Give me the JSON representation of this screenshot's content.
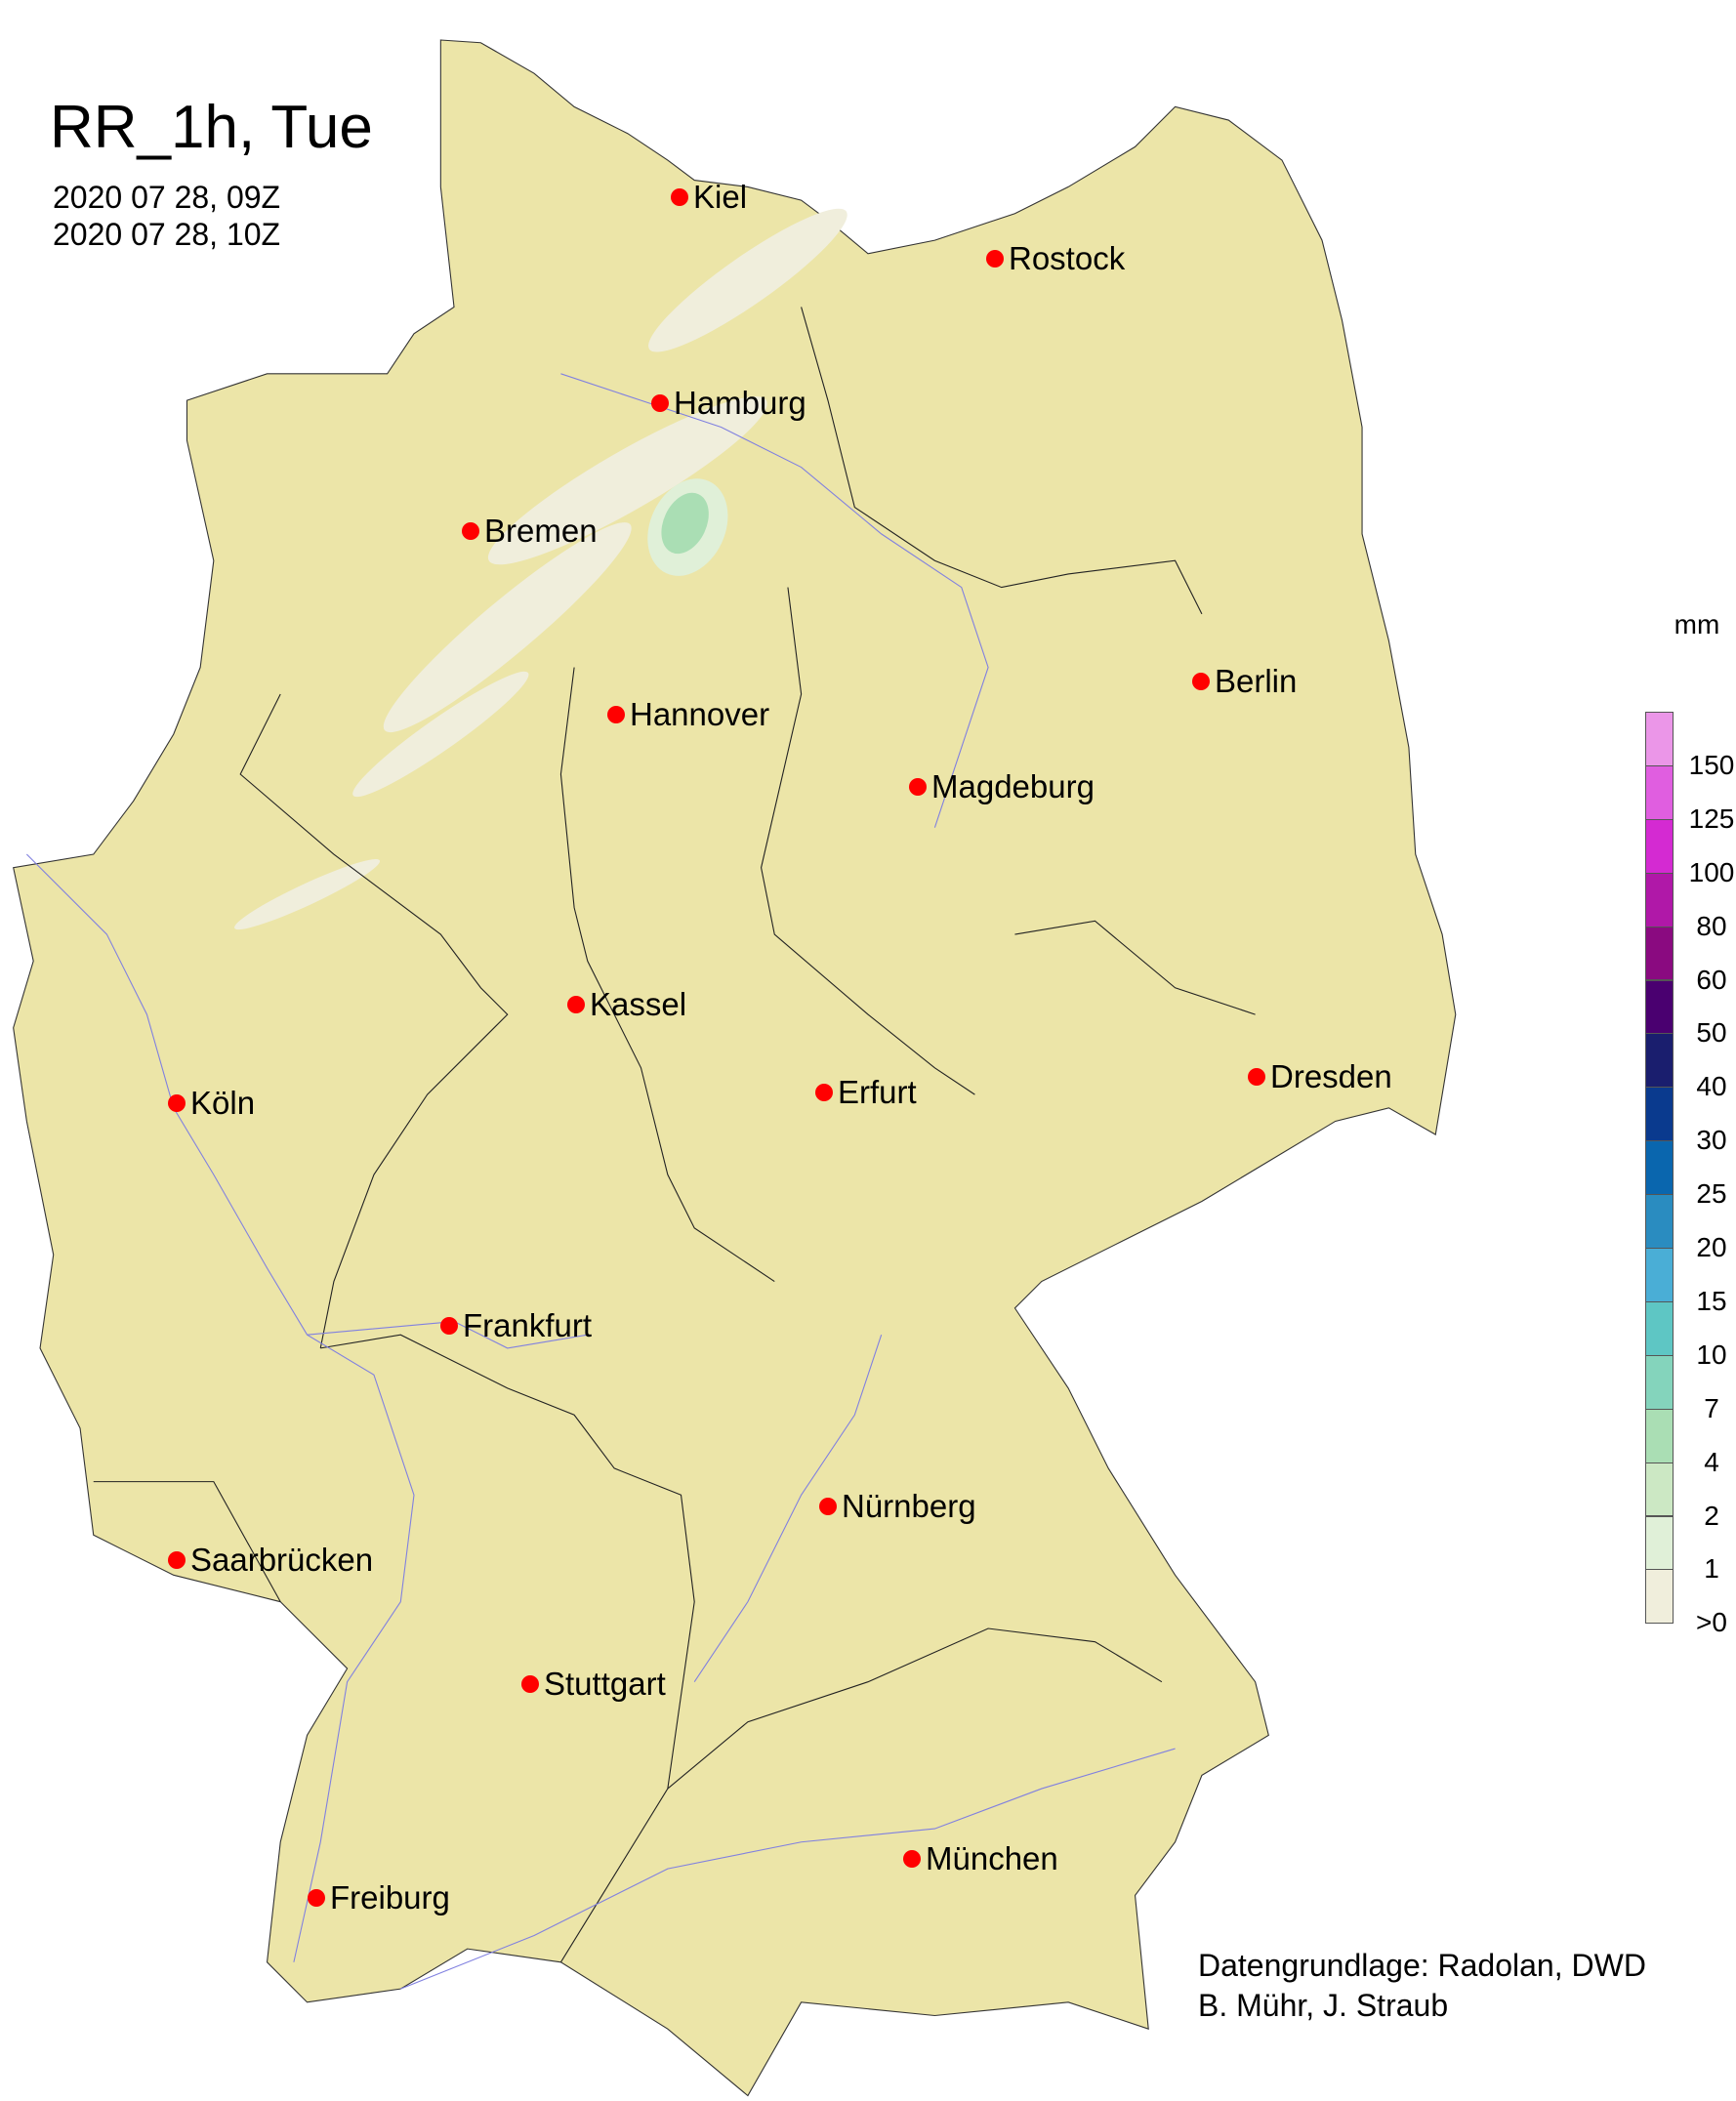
{
  "title": "RR_1h, Tue",
  "time_start": "2020 07 28, 09Z",
  "time_end": "2020 07 28, 10Z",
  "colors": {
    "land": "#ece5a8",
    "city_marker": "#ff0000",
    "border": "#222222",
    "river": "#8080e0"
  },
  "cities": [
    {
      "name": "Kiel"
    },
    {
      "name": "Rostock"
    },
    {
      "name": "Hamburg"
    },
    {
      "name": "Bremen"
    },
    {
      "name": "Berlin"
    },
    {
      "name": "Hannover"
    },
    {
      "name": "Magdeburg"
    },
    {
      "name": "Kassel"
    },
    {
      "name": "Köln"
    },
    {
      "name": "Erfurt"
    },
    {
      "name": "Dresden"
    },
    {
      "name": "Frankfurt"
    },
    {
      "name": "Nürnberg"
    },
    {
      "name": "Saarbrücken"
    },
    {
      "name": "Stuttgart"
    },
    {
      "name": "Freiburg"
    },
    {
      "name": "München"
    }
  ],
  "legend": {
    "unit": "mm",
    "labels": [
      "150",
      "125",
      "100",
      "80",
      "60",
      "50",
      "40",
      "30",
      "25",
      "20",
      "15",
      "10",
      "7",
      "4",
      "2",
      "1",
      ">0"
    ],
    "colors": [
      "#eb96e8",
      "#e05ee0",
      "#d42ad2",
      "#b018a8",
      "#8a0a80",
      "#4a0070",
      "#1a1e6e",
      "#0a3a8e",
      "#0a66ae",
      "#2a8cc0",
      "#4aaed6",
      "#5ec6c4",
      "#84d4bc",
      "#aadeb4",
      "#cce8c4",
      "#e0f0d8",
      "#f0eedc"
    ]
  },
  "credits": [
    "Datengrundlage: Radolan, DWD",
    "B. Mühr, J. Straub"
  ]
}
